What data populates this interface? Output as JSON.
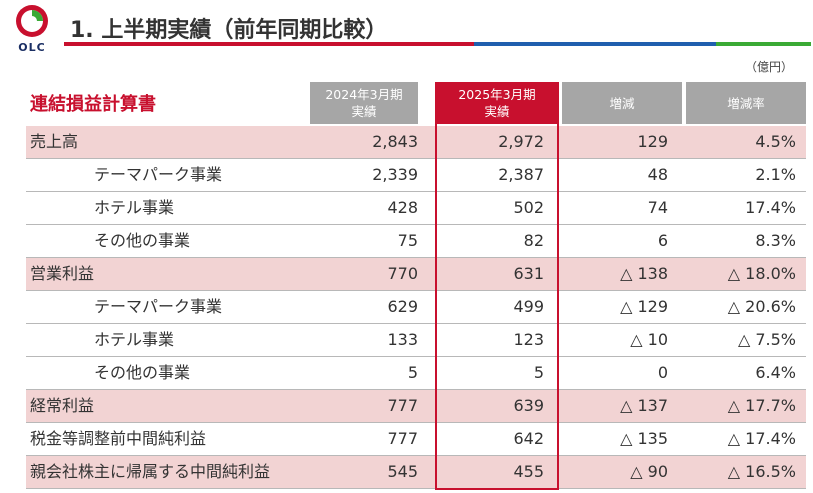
{
  "logo": {
    "text": "OLC"
  },
  "page": {
    "title": "1. 上半期実績（前年同期比較）",
    "unit": "（億円）"
  },
  "section": {
    "title": "連結損益計算書"
  },
  "colors": {
    "accent_red": "#c8102e",
    "blue": "#1f5fae",
    "green": "#3aaa35",
    "header_gray": "#a6a6a6",
    "shade": "#f2d3d3"
  },
  "table": {
    "headers": {
      "prev": [
        "2024年3月期",
        "実績"
      ],
      "cur": [
        "2025年3月期",
        "実績"
      ],
      "diff": "増減",
      "rate": "増減率"
    },
    "rows": [
      {
        "label": "売上高",
        "prev": "2,843",
        "cur": "2,972",
        "diff": "129",
        "rate": "4.5%"
      },
      {
        "label": "テーマパーク事業",
        "prev": "2,339",
        "cur": "2,387",
        "diff": "48",
        "rate": "2.1%"
      },
      {
        "label": "ホテル事業",
        "prev": "428",
        "cur": "502",
        "diff": "74",
        "rate": "17.4%"
      },
      {
        "label": "その他の事業",
        "prev": "75",
        "cur": "82",
        "diff": "6",
        "rate": "8.3%"
      },
      {
        "label": "営業利益",
        "prev": "770",
        "cur": "631",
        "diff": "△ 138",
        "rate": "△ 18.0%"
      },
      {
        "label": "テーマパーク事業",
        "prev": "629",
        "cur": "499",
        "diff": "△ 129",
        "rate": "△ 20.6%"
      },
      {
        "label": "ホテル事業",
        "prev": "133",
        "cur": "123",
        "diff": "△ 10",
        "rate": "△ 7.5%"
      },
      {
        "label": "その他の事業",
        "prev": "5",
        "cur": "5",
        "diff": "0",
        "rate": "6.4%"
      },
      {
        "label": "経常利益",
        "prev": "777",
        "cur": "639",
        "diff": "△ 137",
        "rate": "△ 17.7%"
      },
      {
        "label": "税金等調整前中間純利益",
        "prev": "777",
        "cur": "642",
        "diff": "△ 135",
        "rate": "△ 17.4%"
      },
      {
        "label": "親会社株主に帰属する中間純利益",
        "prev": "545",
        "cur": "455",
        "diff": "△ 90",
        "rate": "△ 16.5%"
      }
    ]
  }
}
